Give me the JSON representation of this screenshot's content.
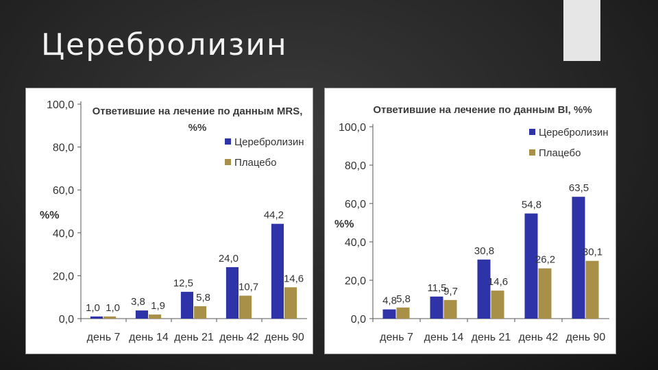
{
  "slide": {
    "title": "Церебролизин"
  },
  "colors": {
    "series1": "#2e33a8",
    "series2": "#a89048"
  },
  "chart_data": [
    {
      "type": "bar",
      "title": "Ответившие на лечение по данным MRS, %%",
      "ylabel": "%%",
      "xlabel": "",
      "ylim": [
        0,
        100
      ],
      "yticks": [
        "0,0",
        "20,0",
        "40,0",
        "60,0",
        "80,0",
        "100,0"
      ],
      "categories": [
        "день 7",
        "день 14",
        "день 21",
        "день 42",
        "день 90"
      ],
      "legend": "top-right",
      "series": [
        {
          "name": "Церебролизин",
          "values": [
            1.0,
            3.8,
            12.5,
            24.0,
            44.2
          ],
          "labels": [
            "1,0",
            "3,8",
            "12,5",
            "24,0",
            "44,2"
          ]
        },
        {
          "name": "Плацебо",
          "values": [
            1.0,
            1.9,
            5.8,
            10.7,
            14.6
          ],
          "labels": [
            "1,0",
            "1,9",
            "5,8",
            "10,7",
            "14,6"
          ]
        }
      ]
    },
    {
      "type": "bar",
      "title": "Ответившие на лечение по данным BI, %%",
      "ylabel": "%%",
      "xlabel": "",
      "ylim": [
        0,
        100
      ],
      "yticks": [
        "0,0",
        "20,0",
        "40,0",
        "60,0",
        "80,0",
        "100,0"
      ],
      "categories": [
        "день 7",
        "день 14",
        "день 21",
        "день 42",
        "день 90"
      ],
      "legend": "top-right",
      "series": [
        {
          "name": "Церебролизин",
          "values": [
            4.8,
            11.5,
            30.8,
            54.8,
            63.5
          ],
          "labels": [
            "4,8",
            "11,5",
            "30,8",
            "54,8",
            "63,5"
          ]
        },
        {
          "name": "Плацебо",
          "values": [
            5.8,
            9.7,
            14.6,
            26.2,
            30.1
          ],
          "labels": [
            "5,8",
            "9,7",
            "14,6",
            "26,2",
            "30,1"
          ]
        }
      ]
    }
  ]
}
